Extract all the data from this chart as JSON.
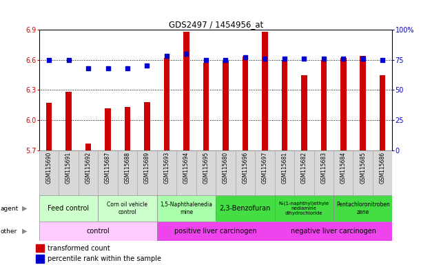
{
  "title": "GDS2497 / 1454956_at",
  "samples": [
    "GSM115690",
    "GSM115691",
    "GSM115692",
    "GSM115687",
    "GSM115688",
    "GSM115689",
    "GSM115693",
    "GSM115694",
    "GSM115695",
    "GSM115680",
    "GSM115696",
    "GSM115697",
    "GSM115681",
    "GSM115682",
    "GSM115683",
    "GSM115684",
    "GSM115685",
    "GSM115686"
  ],
  "transformed_count": [
    6.17,
    6.28,
    5.77,
    6.12,
    6.13,
    6.18,
    6.62,
    6.88,
    6.57,
    6.6,
    6.63,
    6.88,
    6.6,
    6.45,
    6.6,
    6.62,
    6.64,
    6.45
  ],
  "percentile_rank": [
    75,
    75,
    68,
    68,
    68,
    70,
    78,
    80,
    75,
    75,
    77,
    76,
    76,
    76,
    76,
    76,
    76,
    75
  ],
  "ylim_left": [
    5.7,
    6.9
  ],
  "ylim_right": [
    0,
    100
  ],
  "yticks_left": [
    5.7,
    6.0,
    6.3,
    6.6,
    6.9
  ],
  "yticks_right": [
    0,
    25,
    50,
    75,
    100
  ],
  "ytick_labels_right": [
    "0",
    "25",
    "50",
    "75",
    "100%"
  ],
  "bar_color": "#cc0000",
  "dot_color": "#0000cc",
  "agent_groups": [
    {
      "label": "Feed control",
      "start": 0,
      "end": 3,
      "color": "#ccffcc"
    },
    {
      "label": "Corn oil vehicle\ncontrol",
      "start": 3,
      "end": 6,
      "color": "#ccffcc"
    },
    {
      "label": "1,5-Naphthalenedia\nmine",
      "start": 6,
      "end": 9,
      "color": "#99ff99"
    },
    {
      "label": "2,3-Benzofuran",
      "start": 9,
      "end": 12,
      "color": "#44cc44"
    },
    {
      "label": "N-(1-naphthyl)ethyle\nnediamine\ndihydrochloride",
      "start": 12,
      "end": 15,
      "color": "#44cc44"
    },
    {
      "label": "Pentachloronitroben\nzene",
      "start": 15,
      "end": 18,
      "color": "#44cc44"
    }
  ],
  "other_groups": [
    {
      "label": "control",
      "start": 0,
      "end": 6,
      "color": "#ffaaff"
    },
    {
      "label": "positive liver carcinogen",
      "start": 6,
      "end": 12,
      "color": "#ee44ee"
    },
    {
      "label": "negative liver carcinogen",
      "start": 12,
      "end": 18,
      "color": "#ee44ee"
    }
  ],
  "legend_items": [
    {
      "label": "transformed count",
      "color": "#cc0000"
    },
    {
      "label": "percentile rank within the sample",
      "color": "#0000cc"
    }
  ]
}
